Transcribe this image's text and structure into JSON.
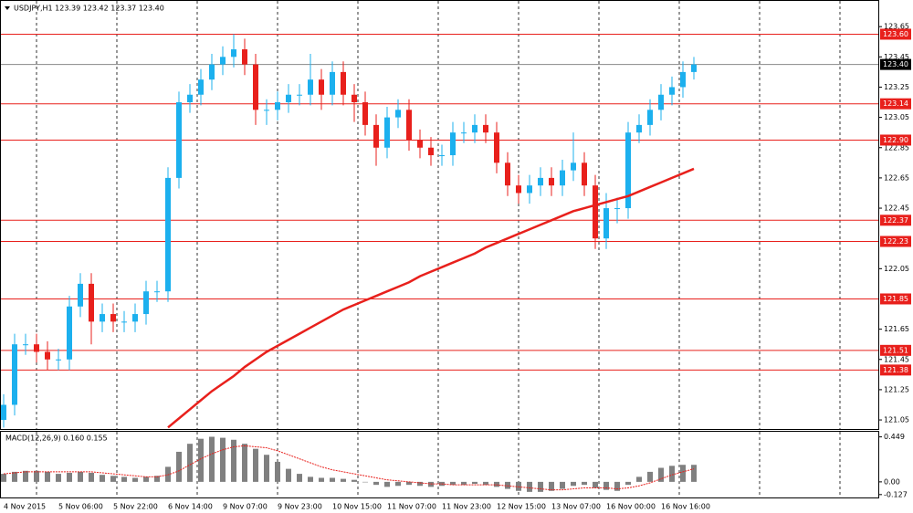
{
  "chart_data": [
    {
      "type": "candlestick",
      "title": "USDJPY,H1  123.39 123.42 123.37 123.40",
      "categories": [
        "4 Nov 2015",
        null,
        null,
        null,
        null,
        "5 Nov 06:00",
        null,
        null,
        null,
        null,
        "5 Nov 22:00",
        null,
        null,
        null,
        null,
        "6 Nov 14:00",
        null,
        null,
        null,
        null,
        "9 Nov 07:00",
        null,
        null,
        null,
        null,
        "9 Nov 23:00",
        null,
        null,
        null,
        null,
        "10 Nov 15:00",
        null,
        null,
        null,
        null,
        "11 Nov 07:00",
        null,
        null,
        null,
        null,
        "11 Nov 23:00",
        null,
        null,
        null,
        null,
        "12 Nov 15:00",
        null,
        null,
        null,
        null,
        "13 Nov 07:00",
        null,
        null,
        null,
        null,
        "16 Nov 00:00",
        null,
        null,
        null,
        null,
        "16 Nov 16:00",
        null,
        null,
        null
      ],
      "open": [
        121.05,
        121.15,
        121.55,
        121.55,
        121.5,
        121.45,
        121.45,
        121.8,
        121.95,
        121.7,
        121.75,
        121.7,
        121.7,
        121.75,
        121.9,
        121.9,
        122.65,
        123.15,
        123.2,
        123.3,
        123.4,
        123.45,
        123.5,
        123.4,
        123.1,
        123.1,
        123.15,
        123.2,
        123.2,
        123.3,
        123.2,
        123.35,
        123.2,
        123.15,
        123.0,
        122.85,
        123.05,
        123.1,
        122.9,
        122.85,
        122.8,
        122.8,
        122.95,
        122.95,
        123.0,
        122.95,
        122.75,
        122.6,
        122.55,
        122.6,
        122.65,
        122.6,
        122.7,
        122.75,
        122.6,
        122.25,
        122.45,
        122.45,
        122.95,
        123.0,
        123.1,
        123.2,
        123.25,
        123.35
      ],
      "high": [
        121.22,
        121.62,
        121.62,
        121.62,
        121.57,
        121.52,
        121.87,
        122.02,
        122.02,
        121.82,
        121.82,
        121.77,
        121.82,
        121.97,
        121.97,
        122.72,
        123.22,
        123.27,
        123.37,
        123.47,
        123.52,
        123.6,
        123.57,
        123.47,
        123.17,
        123.22,
        123.27,
        123.27,
        123.47,
        123.37,
        123.42,
        123.42,
        123.27,
        123.22,
        123.07,
        123.12,
        123.17,
        123.17,
        122.97,
        122.92,
        122.87,
        123.02,
        123.02,
        123.07,
        123.07,
        123.02,
        122.82,
        122.67,
        122.67,
        122.72,
        122.72,
        122.77,
        122.95,
        122.82,
        122.67,
        122.55,
        122.52,
        123.02,
        123.07,
        123.17,
        123.27,
        123.32,
        123.42,
        123.45
      ],
      "low": [
        121.0,
        121.08,
        121.48,
        121.43,
        121.38,
        121.38,
        121.38,
        121.73,
        121.55,
        121.63,
        121.63,
        121.63,
        121.63,
        121.68,
        121.83,
        121.83,
        122.58,
        123.08,
        123.13,
        123.23,
        123.33,
        123.38,
        123.33,
        123.0,
        123.0,
        123.03,
        123.08,
        123.13,
        123.13,
        123.1,
        123.13,
        123.13,
        123.02,
        122.93,
        122.73,
        122.78,
        122.98,
        122.83,
        122.78,
        122.73,
        122.73,
        122.73,
        122.88,
        122.88,
        122.88,
        122.68,
        122.53,
        122.48,
        122.48,
        122.53,
        122.53,
        122.53,
        122.63,
        122.53,
        122.18,
        122.18,
        122.35,
        122.38,
        122.88,
        122.93,
        123.03,
        123.13,
        123.18,
        123.3
      ],
      "close": [
        121.15,
        121.55,
        121.55,
        121.5,
        121.45,
        121.45,
        121.8,
        121.95,
        121.7,
        121.75,
        121.7,
        121.7,
        121.75,
        121.9,
        121.9,
        122.65,
        123.15,
        123.2,
        123.3,
        123.4,
        123.45,
        123.5,
        123.4,
        123.1,
        123.1,
        123.15,
        123.2,
        123.2,
        123.3,
        123.2,
        123.35,
        123.2,
        123.15,
        123.0,
        122.85,
        123.05,
        123.1,
        122.9,
        122.85,
        122.8,
        122.8,
        122.95,
        122.95,
        123.0,
        122.95,
        122.75,
        122.6,
        122.55,
        122.6,
        122.65,
        122.6,
        122.7,
        122.75,
        122.6,
        122.25,
        122.45,
        122.45,
        122.95,
        123.0,
        123.1,
        123.2,
        123.25,
        123.35,
        123.4
      ],
      "up_color": "#1cb0ee",
      "down_color": "#e8201c",
      "ma": {
        "color": "#e8201c",
        "values": [
          null,
          null,
          null,
          null,
          null,
          null,
          null,
          null,
          null,
          null,
          null,
          null,
          null,
          null,
          null,
          121.0,
          121.06,
          121.12,
          121.18,
          121.24,
          121.29,
          121.34,
          121.4,
          121.45,
          121.5,
          121.54,
          121.58,
          121.62,
          121.66,
          121.7,
          121.74,
          121.78,
          121.81,
          121.84,
          121.87,
          121.9,
          121.93,
          121.96,
          122.0,
          122.03,
          122.06,
          122.09,
          122.12,
          122.15,
          122.19,
          122.22,
          122.25,
          122.28,
          122.31,
          122.34,
          122.37,
          122.4,
          122.43,
          122.45,
          122.47,
          122.49,
          122.51,
          122.53,
          122.56,
          122.59,
          122.62,
          122.65,
          122.68,
          122.71
        ]
      },
      "ylim": [
        120.99,
        123.82
      ],
      "yticks": [
        123.65,
        123.45,
        123.25,
        123.05,
        122.85,
        122.65,
        122.45,
        122.05,
        121.65,
        121.45,
        121.25,
        121.05
      ],
      "levels": [
        {
          "value": 123.6,
          "label": "123.60"
        },
        {
          "value": 123.14,
          "label": "123.14"
        },
        {
          "value": 122.9,
          "label": "122.90"
        },
        {
          "value": 122.37,
          "label": "122.37"
        },
        {
          "value": 122.23,
          "label": "122.23"
        },
        {
          "value": 121.85,
          "label": "121.85"
        },
        {
          "value": 121.51,
          "label": "121.51"
        },
        {
          "value": 121.38,
          "label": "121.38"
        }
      ],
      "level_color": "#e8201c",
      "current": {
        "value": 123.4,
        "label": "123.40"
      }
    },
    {
      "type": "macd",
      "title": "MACD(12,26,9) 0.160 0.155",
      "histogram": [
        0.08,
        0.1,
        0.11,
        0.11,
        0.1,
        0.08,
        0.09,
        0.1,
        0.09,
        0.07,
        0.06,
        0.05,
        0.04,
        0.05,
        0.06,
        0.15,
        0.3,
        0.38,
        0.43,
        0.45,
        0.44,
        0.42,
        0.38,
        0.33,
        0.27,
        0.2,
        0.13,
        0.08,
        0.05,
        0.04,
        0.04,
        0.03,
        0.02,
        0.0,
        -0.03,
        -0.05,
        -0.04,
        -0.03,
        -0.04,
        -0.05,
        -0.04,
        -0.03,
        -0.03,
        -0.02,
        -0.03,
        -0.05,
        -0.07,
        -0.09,
        -0.1,
        -0.1,
        -0.09,
        -0.07,
        -0.04,
        -0.03,
        -0.06,
        -0.08,
        -0.09,
        -0.03,
        0.05,
        0.1,
        0.14,
        0.16,
        0.17,
        0.17
      ],
      "signal": [
        0.08,
        0.09,
        0.1,
        0.1,
        0.1,
        0.1,
        0.1,
        0.1,
        0.1,
        0.09,
        0.08,
        0.07,
        0.06,
        0.05,
        0.05,
        0.07,
        0.11,
        0.17,
        0.23,
        0.28,
        0.32,
        0.35,
        0.36,
        0.35,
        0.34,
        0.31,
        0.27,
        0.23,
        0.19,
        0.15,
        0.12,
        0.1,
        0.08,
        0.06,
        0.04,
        0.02,
        0.01,
        0.0,
        -0.01,
        -0.02,
        -0.02,
        -0.03,
        -0.03,
        -0.03,
        -0.03,
        -0.03,
        -0.04,
        -0.05,
        -0.06,
        -0.07,
        -0.08,
        -0.08,
        -0.07,
        -0.06,
        -0.06,
        -0.06,
        -0.07,
        -0.06,
        -0.04,
        -0.01,
        0.03,
        0.07,
        0.1,
        0.13
      ],
      "histogram_color": "#808080",
      "signal_color": "#e8201c",
      "ylim": [
        -0.156,
        0.5
      ],
      "yticks": [
        0.449,
        {
          "value": 0,
          "label": "0.00"
        },
        -0.127
      ]
    }
  ]
}
